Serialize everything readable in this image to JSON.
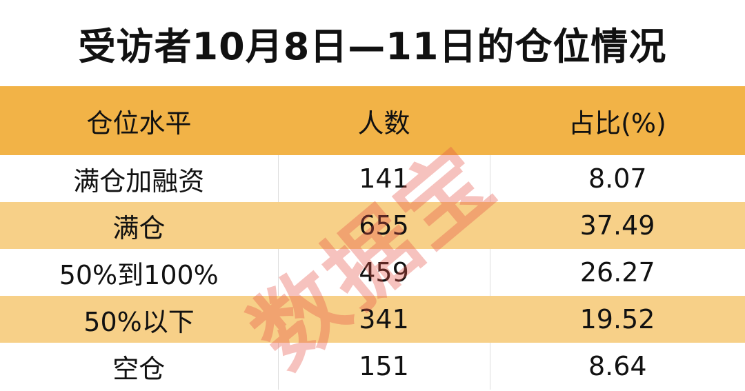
{
  "title": "受访者10月8日—11日的仓位情况",
  "watermark": "数据宝",
  "colors": {
    "header": "#F2B347",
    "stripe": "#F7D088",
    "watermark": "#E65046"
  },
  "chart_data": {
    "type": "table",
    "columns": [
      "仓位水平",
      "人数",
      "占比(%)"
    ],
    "rows": [
      [
        "满仓加融资",
        "141",
        "8.07"
      ],
      [
        "满仓",
        "655",
        "37.49"
      ],
      [
        "50%到100%",
        "459",
        "26.27"
      ],
      [
        "50%以下",
        "341",
        "19.52"
      ],
      [
        "空仓",
        "151",
        "8.64"
      ]
    ]
  }
}
